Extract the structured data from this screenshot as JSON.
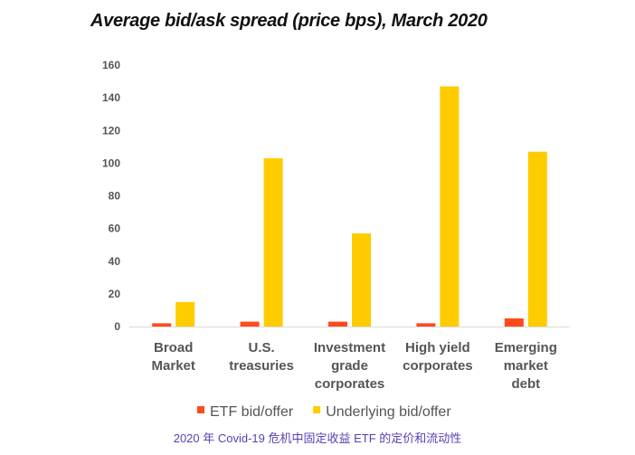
{
  "chart_data": {
    "type": "bar",
    "title": "Average bid/ask spread (price bps), March 2020",
    "categories": [
      [
        "Broad",
        "Market"
      ],
      [
        "U.S.",
        "treasuries"
      ],
      [
        "Investment",
        "grade",
        "corporates"
      ],
      [
        "High yield",
        "corporates"
      ],
      [
        "Emerging",
        "market",
        "debt"
      ]
    ],
    "series": [
      {
        "name": "ETF bid/offer",
        "color": "#ff4a1c",
        "values": [
          2,
          3,
          3,
          2,
          5
        ]
      },
      {
        "name": "Underlying bid/offer",
        "color": "#ffcc00",
        "values": [
          15,
          103,
          57,
          147,
          107
        ]
      }
    ],
    "ylim": [
      0,
      160
    ],
    "yticks": [
      0,
      20,
      40,
      60,
      80,
      100,
      120,
      140,
      160
    ],
    "xlabel": "",
    "ylabel": "",
    "grid": false,
    "legend": "bottom"
  },
  "caption": "2020 年 Covid-19 危机中固定收益 ETF 的定价和流动性"
}
